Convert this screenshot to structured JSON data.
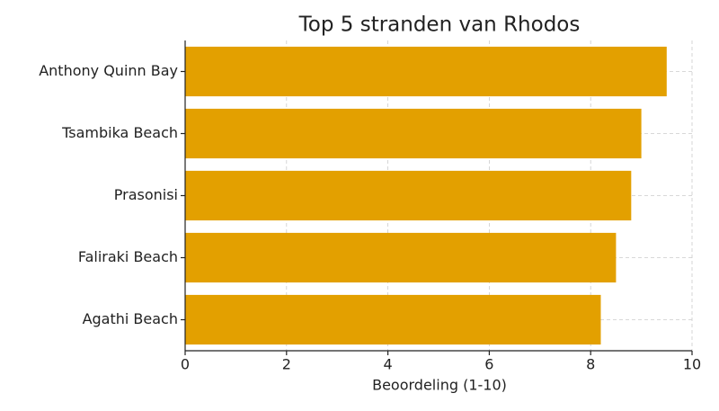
{
  "chart_data": {
    "type": "barh",
    "title": "Top 5 stranden van Rhodos",
    "xlabel": "Beoordeling (1-10)",
    "categories": [
      "Anthony Quinn Bay",
      "Tsambika Beach",
      "Prasonisi",
      "Faliraki Beach",
      "Agathi Beach"
    ],
    "values": [
      9.5,
      9.0,
      8.8,
      8.5,
      8.2
    ],
    "color": "#e3a000",
    "xlim": [
      0,
      10
    ],
    "xticks": [
      0,
      2,
      4,
      6,
      8,
      10
    ],
    "grid": true
  }
}
